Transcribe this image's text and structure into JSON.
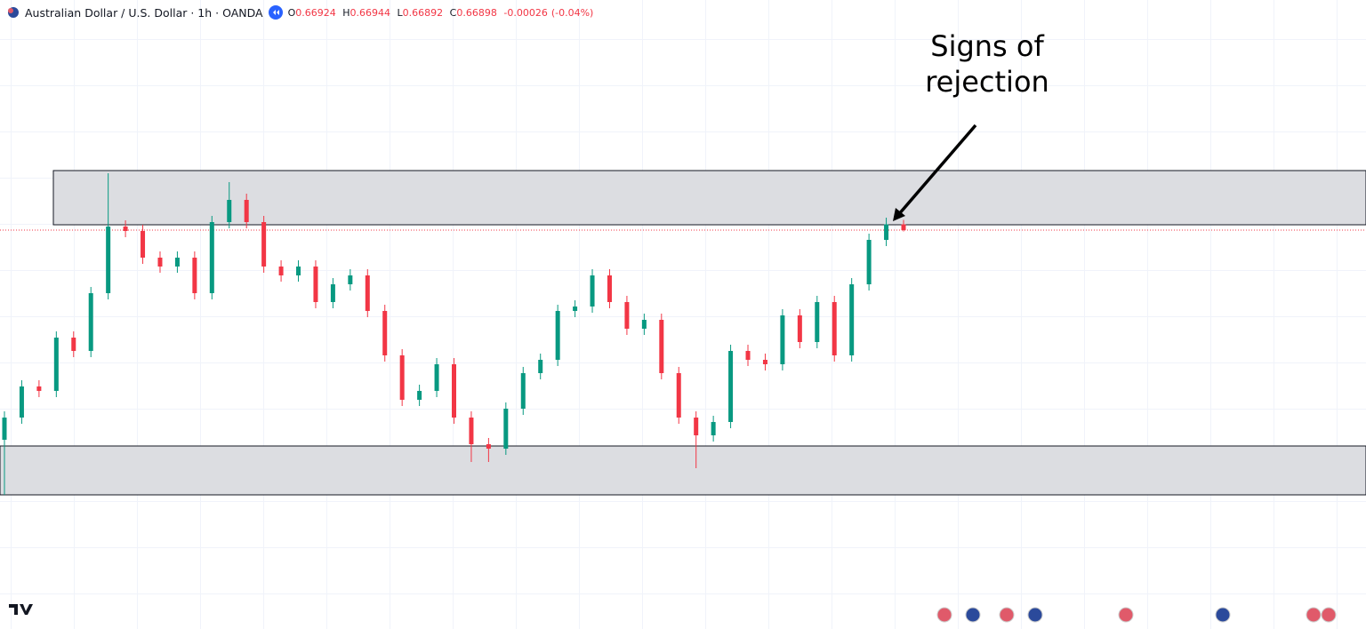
{
  "chart_data": {
    "type": "candlestick",
    "title": "Australian Dollar / U.S. Dollar · 1h · OANDA",
    "ohlc_labels": [
      "O",
      "H",
      "L",
      "C"
    ],
    "change": "-0.00026",
    "change_percent": "(-0.04%)",
    "annotation": [
      "Signs of",
      "rejection"
    ],
    "up_color": "#089981",
    "down_color": "#f23645",
    "ylim": [
      0.65102,
      0.67934
    ],
    "zones": [
      {
        "low": 0.66922,
        "high": 0.67166
      },
      {
        "low": 0.65706,
        "high": 0.65926
      }
    ],
    "open": [
      0.65954,
      0.66054,
      0.66194,
      0.66174,
      0.66414,
      0.66354,
      0.66614,
      0.66914,
      0.66894,
      0.66774,
      0.66734,
      0.66774,
      0.66614,
      0.66934,
      0.67034,
      0.66934,
      0.66734,
      0.66694,
      0.66734,
      0.66574,
      0.66654,
      0.66694,
      0.66534,
      0.66334,
      0.66134,
      0.66174,
      0.66294,
      0.66054,
      0.65934,
      0.65914,
      0.66094,
      0.66254,
      0.66314,
      0.66534,
      0.66554,
      0.66694,
      0.66574,
      0.66454,
      0.66494,
      0.66254,
      0.66054,
      0.65974,
      0.66034,
      0.66354,
      0.66314,
      0.66294,
      0.66514,
      0.66394,
      0.66574,
      0.66334,
      0.66654,
      0.66854,
      0.66924
    ],
    "high": [
      0.66082,
      0.66222,
      0.66222,
      0.66442,
      0.66442,
      0.66642,
      0.67154,
      0.66942,
      0.66922,
      0.66802,
      0.66802,
      0.66802,
      0.66962,
      0.67114,
      0.67062,
      0.66962,
      0.66762,
      0.66762,
      0.66762,
      0.66682,
      0.66722,
      0.66722,
      0.66562,
      0.66362,
      0.66202,
      0.66322,
      0.66322,
      0.66082,
      0.65962,
      0.66122,
      0.66282,
      0.66342,
      0.66562,
      0.66582,
      0.66722,
      0.66722,
      0.66602,
      0.66522,
      0.66522,
      0.66282,
      0.66082,
      0.66062,
      0.66382,
      0.66382,
      0.66342,
      0.66542,
      0.66542,
      0.66602,
      0.66602,
      0.66682,
      0.66882,
      0.66954,
      0.66944
    ],
    "low": [
      0.65706,
      0.66026,
      0.66146,
      0.66146,
      0.66326,
      0.66326,
      0.66586,
      0.66866,
      0.66746,
      0.66706,
      0.66706,
      0.66586,
      0.66586,
      0.66906,
      0.66906,
      0.66706,
      0.66666,
      0.66666,
      0.66546,
      0.66546,
      0.66626,
      0.66506,
      0.66306,
      0.66106,
      0.66106,
      0.66146,
      0.66026,
      0.65854,
      0.65854,
      0.65886,
      0.66066,
      0.66226,
      0.66286,
      0.66506,
      0.66526,
      0.66546,
      0.66426,
      0.66426,
      0.66226,
      0.66026,
      0.65826,
      0.65946,
      0.66006,
      0.66286,
      0.66266,
      0.66266,
      0.66366,
      0.66366,
      0.66306,
      0.66306,
      0.66626,
      0.66826,
      0.66892
    ],
    "close": [
      0.66054,
      0.66194,
      0.66174,
      0.66414,
      0.66354,
      0.66614,
      0.66914,
      0.66894,
      0.66774,
      0.66734,
      0.66774,
      0.66614,
      0.66934,
      0.67034,
      0.66934,
      0.66734,
      0.66694,
      0.66734,
      0.66574,
      0.66654,
      0.66694,
      0.66534,
      0.66334,
      0.66134,
      0.66174,
      0.66294,
      0.66054,
      0.65934,
      0.65914,
      0.66094,
      0.66254,
      0.66314,
      0.66534,
      0.66554,
      0.66694,
      0.66574,
      0.66454,
      0.66494,
      0.66254,
      0.66054,
      0.65974,
      0.66034,
      0.66354,
      0.66314,
      0.66294,
      0.66514,
      0.66394,
      0.66574,
      0.66334,
      0.66654,
      0.66854,
      0.66924,
      0.66898
    ]
  }
}
